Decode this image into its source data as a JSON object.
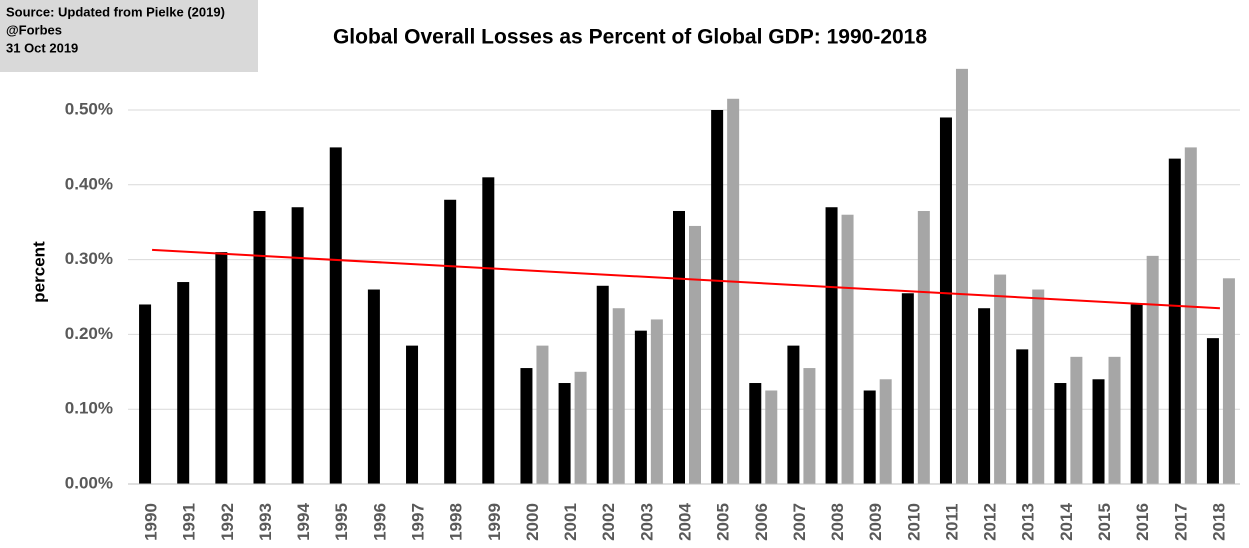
{
  "chart_data": {
    "type": "bar",
    "title": "Global Overall Losses as Percent of Global GDP: 1990-2018",
    "annotation": [
      "Source: Updated from Pielke (2019)",
      "@Forbes",
      "31 Oct 2019"
    ],
    "y_label": "percent",
    "categories": [
      "1990",
      "1991",
      "1992",
      "1993",
      "1994",
      "1995",
      "1996",
      "1997",
      "1998",
      "1999",
      "2000",
      "2001",
      "2002",
      "2003",
      "2004",
      "2005",
      "2006",
      "2007",
      "2008",
      "2009",
      "2010",
      "2011",
      "2012",
      "2013",
      "2014",
      "2015",
      "2016",
      "2017",
      "2018"
    ],
    "series": [
      {
        "color": "#000000",
        "values": [
          0.24,
          0.27,
          0.31,
          0.365,
          0.37,
          0.45,
          0.26,
          0.185,
          0.38,
          0.41,
          0.155,
          0.135,
          0.265,
          0.205,
          0.365,
          0.5,
          0.135,
          0.185,
          0.37,
          0.125,
          0.255,
          0.49,
          0.235,
          0.18,
          0.135,
          0.14,
          0.24,
          0.435,
          0.195
        ]
      },
      {
        "color": "#a6a6a6",
        "values": [
          null,
          null,
          null,
          null,
          null,
          null,
          null,
          null,
          null,
          null,
          0.185,
          0.15,
          0.235,
          0.22,
          0.345,
          0.515,
          0.125,
          0.155,
          0.36,
          0.14,
          0.365,
          0.555,
          0.28,
          0.26,
          0.17,
          0.17,
          0.305,
          0.45,
          0.275
        ]
      }
    ],
    "trendline": {
      "values": [
        0.313,
        0.235
      ],
      "color": "#ff0000"
    },
    "ylim": [
      0,
      0.55
    ],
    "yticks": [
      {
        "value": 0,
        "label": "0.00%"
      },
      {
        "value": 0.1,
        "label": "0.10%"
      },
      {
        "value": 0.2,
        "label": "0.20%"
      },
      {
        "value": 0.3,
        "label": "0.30%"
      },
      {
        "value": 0.4,
        "label": "0.40%"
      },
      {
        "value": 0.5,
        "label": "0.50%"
      }
    ],
    "grid": true
  }
}
